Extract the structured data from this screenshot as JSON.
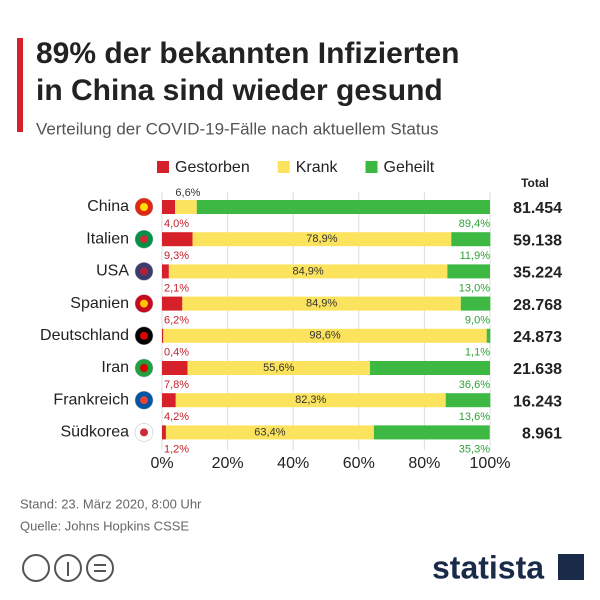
{
  "chart_data": {
    "type": "stacked_bar_horizontal",
    "title_lines": [
      "89% der bekannten Infizierten",
      "in China sind wieder gesund"
    ],
    "subtitle": "Verteilung der COVID-19-Fälle nach aktuellem Status",
    "categories": [
      "China",
      "Italien",
      "USA",
      "Spanien",
      "Deutschland",
      "Iran",
      "Frankreich",
      "Südkorea"
    ],
    "series": [
      {
        "name": "Gestorben",
        "color": "#d7212a",
        "label_color": "#c41e2a",
        "values": [
          4.0,
          9.3,
          2.1,
          6.2,
          0.4,
          7.8,
          4.2,
          1.2
        ],
        "value_labels": [
          "4,0%",
          "9,3%",
          "2,1%",
          "6,2%",
          "0,4%",
          "7,8%",
          "4,2%",
          "1,2%"
        ]
      },
      {
        "name": "Krank",
        "color": "#fce35e",
        "label_color": "#333333",
        "values": [
          6.6,
          78.9,
          84.9,
          84.9,
          98.6,
          55.6,
          82.3,
          63.4
        ],
        "value_labels": [
          "6,6%",
          "78,9%",
          "84,9%",
          "84,9%",
          "98,6%",
          "55,6%",
          "82,3%",
          "63,4%"
        ]
      },
      {
        "name": "Geheilt",
        "color": "#3db843",
        "label_color": "#2ea236",
        "values": [
          89.4,
          11.9,
          13.0,
          9.0,
          1.1,
          36.6,
          13.6,
          35.3
        ],
        "value_labels": [
          "89,4%",
          "11,9%",
          "13,0%",
          "9,0%",
          "1,1%",
          "36,6%",
          "13,6%",
          "35,3%"
        ]
      }
    ],
    "totals": {
      "name": "Total",
      "values": [
        81454,
        59138,
        35224,
        28768,
        24873,
        21638,
        16243,
        8961
      ],
      "value_labels": [
        "81.454",
        "59.138",
        "35.224",
        "28.768",
        "24.873",
        "21.638",
        "16.243",
        "8.961"
      ]
    },
    "xlim": [
      0,
      100
    ],
    "xticks": [
      {
        "value": 0,
        "label": "0%"
      },
      {
        "value": 20,
        "label": "20%"
      },
      {
        "value": 40,
        "label": "40%"
      },
      {
        "value": 60,
        "label": "60%"
      },
      {
        "value": 80,
        "label": "80%"
      },
      {
        "value": 100,
        "label": "100%"
      }
    ],
    "grid": true,
    "note": "Stand: 23. März 2020, 8:00 Uhr",
    "source": "Quelle: Johns Hopkins CSSE",
    "brand": "statista"
  }
}
